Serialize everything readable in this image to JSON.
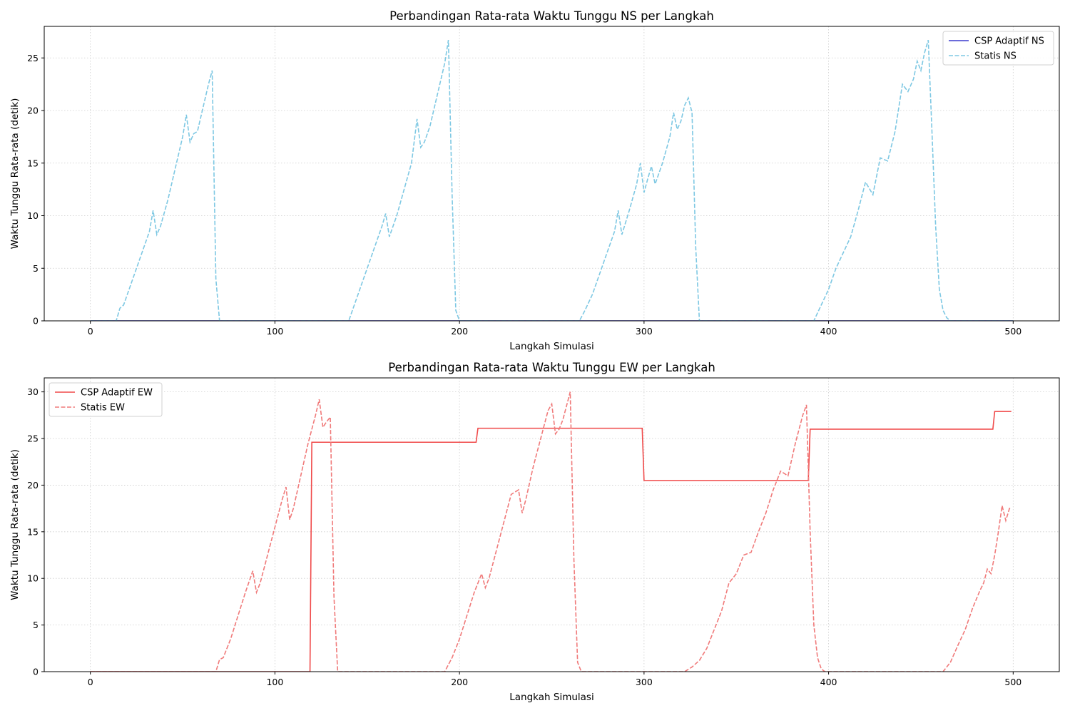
{
  "chart_data": [
    {
      "type": "line",
      "title": "Perbandingan Rata-rata Waktu Tunggu NS per Langkah",
      "xlabel": "Langkah Simulasi",
      "ylabel": "Waktu Tunggu Rata-rata (detik)",
      "xlim": [
        -25,
        525
      ],
      "ylim": [
        0,
        28
      ],
      "xticks": [
        0,
        100,
        200,
        300,
        400,
        500
      ],
      "yticks": [
        0,
        5,
        10,
        15,
        20,
        25
      ],
      "grid": true,
      "legend_position": "top-right",
      "series": [
        {
          "name": "CSP Adaptif NS",
          "color": "#3a3acd",
          "style": "solid",
          "x": [
            0,
            500
          ],
          "y": [
            0,
            0
          ]
        },
        {
          "name": "Statis NS",
          "color": "#7ec8e3",
          "style": "dashed",
          "x": [
            0,
            14,
            16,
            18,
            20,
            24,
            28,
            32,
            34,
            36,
            38,
            42,
            46,
            50,
            52,
            54,
            56,
            58,
            60,
            62,
            64,
            66,
            68,
            70,
            100,
            140,
            142,
            146,
            150,
            154,
            158,
            160,
            162,
            166,
            170,
            174,
            177,
            179,
            181,
            184,
            188,
            192,
            194,
            196,
            198,
            200,
            230,
            265,
            268,
            272,
            276,
            280,
            284,
            286,
            288,
            292,
            296,
            298,
            300,
            302,
            304,
            306,
            310,
            314,
            316,
            318,
            320,
            322,
            324,
            326,
            328,
            330,
            360,
            392,
            396,
            400,
            404,
            408,
            412,
            416,
            420,
            424,
            428,
            432,
            436,
            440,
            443,
            446,
            448,
            450,
            452,
            454,
            456,
            458,
            460,
            462,
            464,
            466,
            480,
            500
          ],
          "y": [
            0,
            0,
            1.2,
            1.5,
            2.5,
            4.5,
            6.5,
            8.5,
            10.5,
            8.2,
            9.0,
            11.5,
            14.5,
            17.5,
            19.6,
            17.0,
            17.8,
            18.0,
            19.5,
            21.0,
            22.5,
            23.8,
            4.0,
            0,
            0,
            0,
            1.0,
            3.0,
            5.0,
            7.0,
            9.0,
            10.2,
            8.0,
            10.0,
            12.5,
            15.0,
            19.2,
            16.5,
            17.0,
            18.5,
            21.5,
            24.5,
            26.7,
            12.0,
            1.0,
            0,
            0,
            0,
            1.0,
            2.5,
            4.5,
            6.5,
            8.5,
            10.5,
            8.2,
            10.5,
            13.0,
            15.0,
            12.2,
            13.5,
            14.7,
            13.0,
            15.0,
            17.5,
            19.8,
            18.2,
            19.0,
            20.5,
            21.2,
            19.8,
            7.0,
            0,
            0,
            0,
            1.5,
            3.0,
            5.0,
            6.5,
            8.0,
            10.5,
            13.2,
            12.0,
            15.5,
            15.2,
            18.0,
            22.5,
            21.8,
            23.0,
            24.7,
            23.8,
            25.5,
            26.7,
            18.0,
            9.0,
            3.0,
            1.0,
            0.3,
            0,
            0,
            0
          ]
        }
      ]
    },
    {
      "type": "line",
      "title": "Perbandingan Rata-rata Waktu Tunggu EW per Langkah",
      "xlabel": "Langkah Simulasi",
      "ylabel": "Waktu Tunggu Rata-rata (detik)",
      "xlim": [
        -25,
        525
      ],
      "ylim": [
        0,
        31.5
      ],
      "xticks": [
        0,
        100,
        200,
        300,
        400,
        500
      ],
      "yticks": [
        0,
        5,
        10,
        15,
        20,
        25,
        30
      ],
      "grid": true,
      "legend_position": "top-left",
      "series": [
        {
          "name": "CSP Adaptif EW",
          "color": "#f04a4a",
          "style": "solid",
          "x": [
            0,
            119,
            120,
            209,
            210,
            299,
            300,
            389,
            390,
            489,
            490,
            499
          ],
          "y": [
            0,
            0,
            24.6,
            24.6,
            26.1,
            26.1,
            20.5,
            20.5,
            26.0,
            26.0,
            27.9,
            27.9
          ]
        },
        {
          "name": "Statis EW",
          "color": "#f07a7a",
          "style": "dashed",
          "x": [
            0,
            68,
            70,
            72,
            76,
            80,
            84,
            88,
            90,
            92,
            96,
            100,
            104,
            106,
            108,
            110,
            114,
            118,
            122,
            124,
            126,
            128,
            130,
            132,
            134,
            160,
            192,
            196,
            200,
            204,
            208,
            212,
            214,
            216,
            220,
            224,
            228,
            232,
            234,
            236,
            240,
            244,
            248,
            250,
            252,
            254,
            256,
            258,
            260,
            262,
            264,
            266,
            270,
            300,
            322,
            326,
            330,
            334,
            338,
            342,
            346,
            350,
            354,
            358,
            362,
            366,
            370,
            374,
            378,
            382,
            386,
            388,
            390,
            392,
            394,
            396,
            398,
            420,
            458,
            462,
            466,
            470,
            474,
            478,
            482,
            484,
            486,
            488,
            490,
            492,
            494,
            496,
            498,
            499
          ],
          "y": [
            0,
            0,
            1.3,
            1.5,
            3.5,
            6.0,
            8.5,
            10.8,
            8.5,
            9.5,
            12.5,
            15.5,
            18.5,
            19.8,
            16.3,
            17.5,
            21.0,
            24.5,
            27.5,
            29.2,
            26.2,
            26.8,
            27.3,
            8.0,
            0,
            0,
            0,
            1.5,
            3.5,
            6.0,
            8.5,
            10.5,
            9.0,
            10.0,
            13.0,
            16.0,
            19.0,
            19.5,
            17.0,
            18.5,
            22.0,
            25.0,
            28.0,
            28.7,
            25.5,
            26.0,
            27.0,
            28.5,
            30.0,
            12.0,
            1.0,
            0,
            0,
            0,
            0,
            0.5,
            1.2,
            2.5,
            4.5,
            6.5,
            9.5,
            10.5,
            12.5,
            12.8,
            15.0,
            17.0,
            19.5,
            21.5,
            21.0,
            24.5,
            27.5,
            28.6,
            15.0,
            5.0,
            1.5,
            0.3,
            0,
            0,
            0,
            0,
            1.0,
            2.8,
            4.5,
            6.8,
            8.7,
            9.5,
            11.0,
            10.5,
            12.5,
            15.0,
            17.8,
            16.2,
            17.5,
            17.5
          ]
        }
      ]
    }
  ]
}
